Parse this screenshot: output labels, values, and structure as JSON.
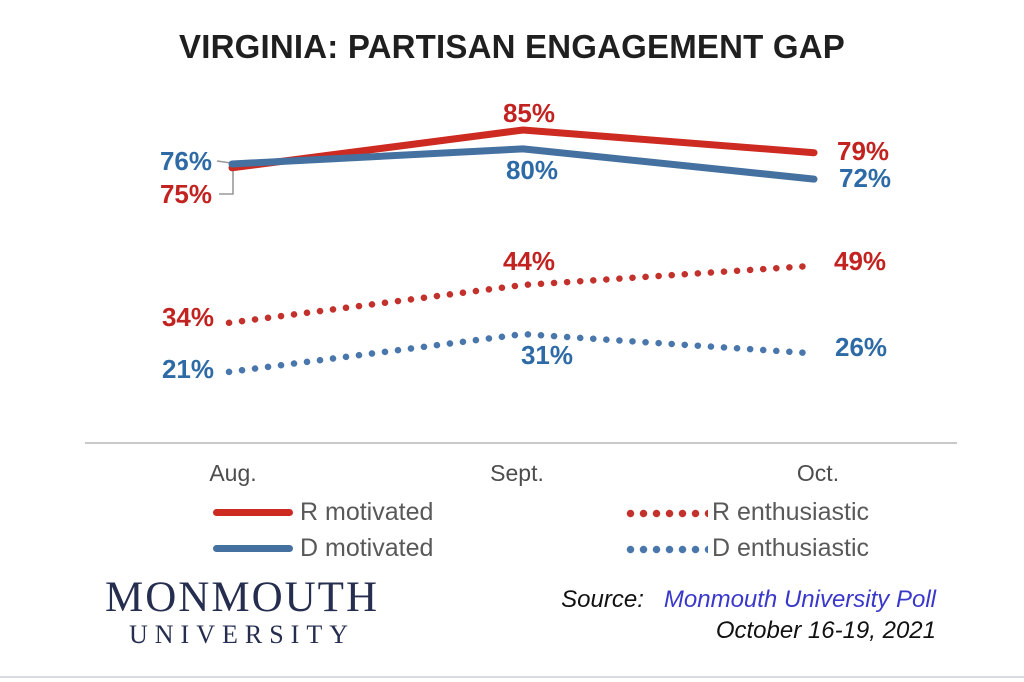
{
  "chart_data": {
    "type": "line",
    "title": "VIRGINIA: PARTISAN ENGAGEMENT GAP",
    "categories": [
      "Aug.",
      "Sept.",
      "Oct."
    ],
    "series": [
      {
        "name": "R motivated",
        "style": "solid",
        "color": "#cd2a21",
        "label_color": "#c22320",
        "values": [
          75,
          85,
          79
        ],
        "point_labels": [
          "75%",
          "85%",
          "79%"
        ]
      },
      {
        "name": "D motivated",
        "style": "solid",
        "color": "#44719f",
        "label_color": "#2e6ba6",
        "values": [
          76,
          80,
          72
        ],
        "point_labels": [
          "76%",
          "80%",
          "72%"
        ]
      },
      {
        "name": "R enthusiastic",
        "style": "dotted",
        "color": "#c2312c",
        "label_color": "#c22320",
        "values": [
          34,
          44,
          49
        ],
        "point_labels": [
          "34%",
          "44%",
          "49%"
        ]
      },
      {
        "name": "D enthusiastic",
        "style": "dotted",
        "color": "#4a77ab",
        "label_color": "#2e6ba6",
        "values": [
          21,
          31,
          26
        ],
        "point_labels": [
          "21%",
          "31%",
          "26%"
        ]
      }
    ],
    "ylim": [
      15,
      90
    ],
    "grid": false,
    "legend_position": "bottom",
    "xlabel": "",
    "ylabel": ""
  },
  "footer": {
    "logo_line1": "MONMOUTH",
    "logo_line2": "UNIVERSITY",
    "source_prefix": "Source:",
    "source_link": "Monmouth University Poll",
    "source_date": "October 16-19, 2021"
  },
  "colors": {
    "title": "#1f1f1f",
    "legend_text": "#595959",
    "axis_text": "#4d4d4d",
    "divider": "#c9c9c9",
    "leader_line": "#9a9a9a",
    "logo_navy": "#262e4f",
    "link_blue": "#3a38cb",
    "source_text": "#111111",
    "bottom_strip": "#d8dbe0"
  }
}
